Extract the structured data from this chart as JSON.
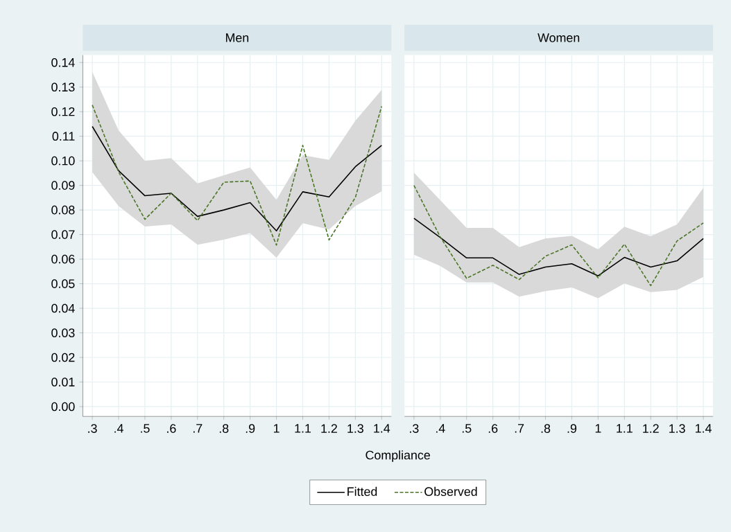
{
  "chart_data": [
    {
      "type": "line",
      "title": "Men",
      "xlabel": "Compliance",
      "categories": [
        ".3",
        ".4",
        ".5",
        ".6",
        ".7",
        ".8",
        ".9",
        "1",
        "1.1",
        "1.2",
        "1.3",
        "1.4"
      ],
      "series": [
        {
          "name": "Fitted",
          "color": "#000000",
          "line_style": "solid",
          "values": [
            0.114,
            0.096,
            0.0858,
            0.0868,
            0.0774,
            0.08,
            0.083,
            0.0715,
            0.0874,
            0.0853,
            0.0976,
            0.1063
          ],
          "lower": [
            0.0954,
            0.0816,
            0.0733,
            0.0741,
            0.0659,
            0.0679,
            0.0706,
            0.0606,
            0.0746,
            0.0721,
            0.0816,
            0.0876
          ],
          "upper": [
            0.1362,
            0.1124,
            0.1,
            0.1011,
            0.0908,
            0.0941,
            0.0973,
            0.0841,
            0.1023,
            0.1004,
            0.1163,
            0.1289
          ]
        },
        {
          "name": "Observed",
          "color": "#4a7526",
          "line_style": "dashed",
          "values": [
            0.1227,
            0.0955,
            0.0762,
            0.0868,
            0.0757,
            0.0913,
            0.0918,
            0.0657,
            0.1063,
            0.0678,
            0.0851,
            0.1222
          ]
        }
      ],
      "ylim": [
        -0.004,
        0.143
      ],
      "yticks": [
        {
          "value": 0,
          "label": "0.00"
        },
        {
          "value": 0.01,
          "label": "0.01"
        },
        {
          "value": 0.02,
          "label": "0.02"
        },
        {
          "value": 0.03,
          "label": "0.03"
        },
        {
          "value": 0.04,
          "label": "0.04"
        },
        {
          "value": 0.05,
          "label": "0.05"
        },
        {
          "value": 0.06,
          "label": "0.06"
        },
        {
          "value": 0.07,
          "label": "0.07"
        },
        {
          "value": 0.08,
          "label": "0.08"
        },
        {
          "value": 0.09,
          "label": "0.09"
        },
        {
          "value": 0.1,
          "label": "0.10"
        },
        {
          "value": 0.11,
          "label": "0.11"
        },
        {
          "value": 0.12,
          "label": "0.12"
        },
        {
          "value": 0.13,
          "label": "0.13"
        },
        {
          "value": 0.14,
          "label": "0.14"
        }
      ],
      "grid": true,
      "legend": "bottom"
    },
    {
      "type": "line",
      "title": "Women",
      "categories": [
        ".3",
        ".4",
        ".5",
        ".6",
        ".7",
        ".8",
        ".9",
        "1",
        "1.1",
        "1.2",
        "1.3",
        "1.4"
      ],
      "series": [
        {
          "color": "#000000",
          "line_style": "solid",
          "values": [
            0.0766,
            0.0688,
            0.0605,
            0.0605,
            0.0538,
            0.0568,
            0.0581,
            0.0532,
            0.0607,
            0.0568,
            0.0593,
            0.0684
          ],
          "lower": [
            0.0618,
            0.0572,
            0.0505,
            0.0505,
            0.0447,
            0.047,
            0.0485,
            0.0441,
            0.0501,
            0.0466,
            0.0475,
            0.0528
          ],
          "upper": [
            0.0952,
            0.084,
            0.0727,
            0.0727,
            0.0649,
            0.0684,
            0.0695,
            0.064,
            0.0732,
            0.0693,
            0.0741,
            0.089
          ]
        },
        {
          "color": "#4a7526",
          "line_style": "dashed",
          "values": [
            0.09,
            0.069,
            0.0522,
            0.0575,
            0.0517,
            0.0612,
            0.0658,
            0.0524,
            0.0661,
            0.0492,
            0.0674,
            0.0747
          ]
        }
      ],
      "ylim": [
        -0.004,
        0.143
      ],
      "yticks": [
        {
          "value": 0,
          "label": null
        },
        {
          "value": 0.01,
          "label": null
        },
        {
          "value": 0.02,
          "label": null
        },
        {
          "value": 0.03,
          "label": null
        },
        {
          "value": 0.04,
          "label": null
        },
        {
          "value": 0.05,
          "label": null
        },
        {
          "value": 0.06,
          "label": null
        },
        {
          "value": 0.07,
          "label": null
        },
        {
          "value": 0.08,
          "label": null
        },
        {
          "value": 0.09,
          "label": null
        },
        {
          "value": 0.1,
          "label": null
        },
        {
          "value": 0.11,
          "label": null
        },
        {
          "value": 0.12,
          "label": null
        },
        {
          "value": 0.13,
          "label": null
        },
        {
          "value": 0.14,
          "label": null
        }
      ],
      "grid": true,
      "tick_labels": "x"
    }
  ]
}
